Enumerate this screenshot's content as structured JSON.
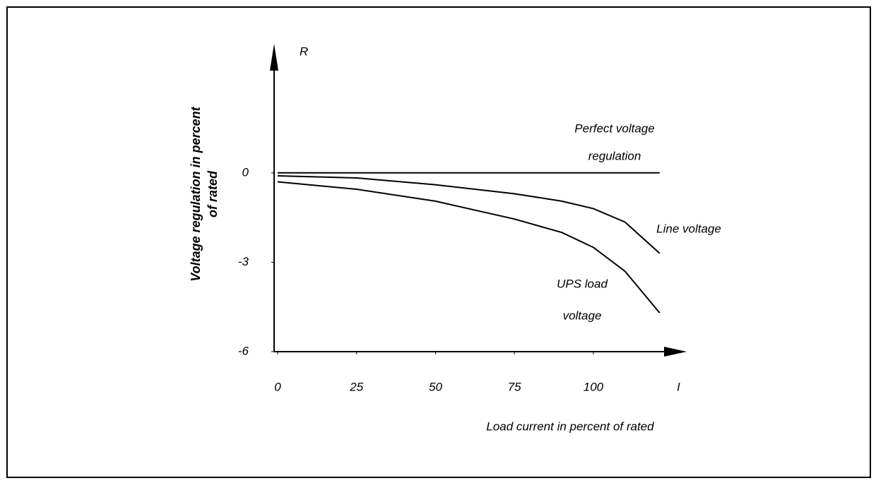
{
  "chart_data": {
    "type": "line",
    "y_label": [
      "Voltage regulation in percent",
      "of rated"
    ],
    "x_label": "Load current in percent of rated",
    "y_axis_symbol": "R",
    "x_axis_symbol": "I",
    "x": [
      0,
      25,
      50,
      75,
      90,
      100,
      110,
      121
    ],
    "series": [
      {
        "name": [
          "Perfect voltage",
          "regulation"
        ],
        "color": "#000000",
        "values": [
          0,
          0,
          0,
          0,
          0,
          0,
          0,
          0
        ]
      },
      {
        "name": [
          "Line voltage"
        ],
        "color": "#000000",
        "values": [
          -0.1,
          -0.17,
          -0.4,
          -0.7,
          -0.95,
          -1.2,
          -1.65,
          -2.7
        ]
      },
      {
        "name": [
          "UPS load",
          "voltage"
        ],
        "color": "#000000",
        "values": [
          -0.3,
          -0.55,
          -0.95,
          -1.55,
          -2.0,
          -2.5,
          -3.3,
          -4.7
        ]
      }
    ],
    "xlim": [
      0,
      130
    ],
    "xticks": [
      0,
      25,
      50,
      75,
      100
    ],
    "ylim": [
      -6,
      4
    ],
    "yticks": [
      0,
      -3,
      -6
    ]
  }
}
